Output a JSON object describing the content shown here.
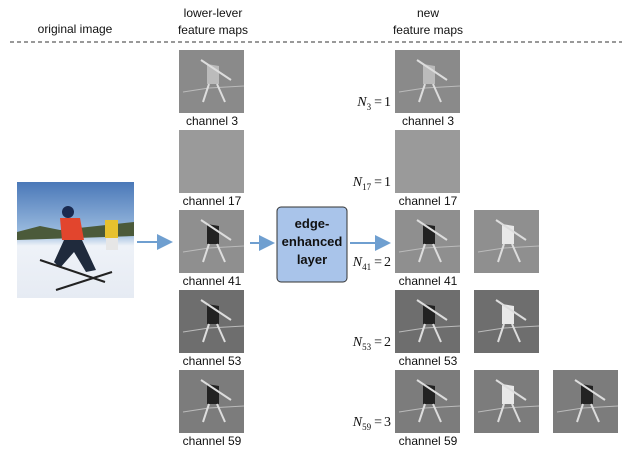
{
  "header": {
    "original": "original image",
    "lower": [
      "lower-lever",
      "feature maps"
    ],
    "new": [
      "new",
      "feature maps"
    ]
  },
  "layer": [
    "edge-",
    "enhanced",
    "layer"
  ],
  "equation": {
    "symbol": "N",
    "relation": "="
  },
  "rows": [
    {
      "channel": "channel 3",
      "subscript": "3",
      "count": 1
    },
    {
      "channel": "channel 17",
      "subscript": "17",
      "count": 1
    },
    {
      "channel": "channel 41",
      "subscript": "41",
      "count": 2
    },
    {
      "channel": "channel 53",
      "subscript": "53",
      "count": 2
    },
    {
      "channel": "channel 59",
      "subscript": "59",
      "count": 3
    }
  ]
}
